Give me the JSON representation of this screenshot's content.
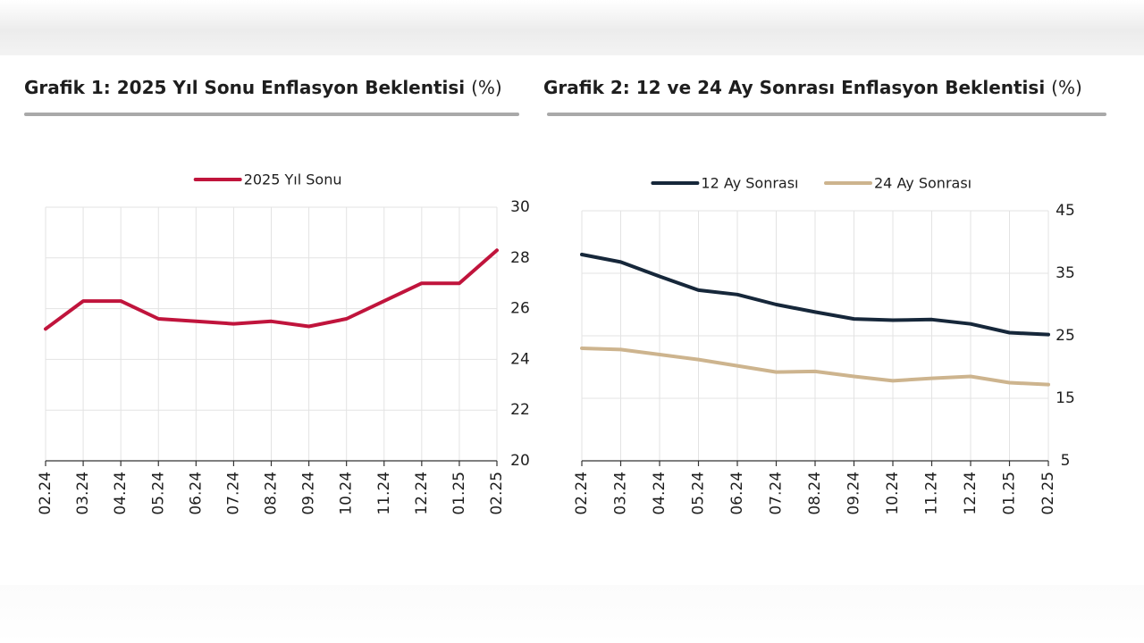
{
  "chart_data": [
    {
      "type": "line",
      "title": "Grafik 1: 2025 Yıl Sonu Enflasyon Beklentisi",
      "unit": "(%)",
      "categories": [
        "02.24",
        "03.24",
        "04.24",
        "05.24",
        "06.24",
        "07.24",
        "08.24",
        "09.24",
        "10.24",
        "11.24",
        "12.24",
        "01.25",
        "02.25"
      ],
      "series": [
        {
          "name": "2025 Yıl Sonu",
          "color": "#c0143c",
          "values": [
            25.2,
            26.3,
            26.3,
            25.6,
            25.5,
            25.4,
            25.5,
            25.3,
            25.6,
            26.3,
            27.0,
            27.0,
            28.3
          ]
        }
      ],
      "ylim": [
        20,
        30
      ],
      "yticks": [
        20,
        22,
        24,
        26,
        28,
        30
      ],
      "grid": true,
      "legend": "top-center",
      "y_axis_side": "right"
    },
    {
      "type": "line",
      "title": "Grafik 2: 12 ve 24 Ay Sonrası Enflasyon Beklentisi",
      "unit": "(%)",
      "categories": [
        "02.24",
        "03.24",
        "04.24",
        "05.24",
        "06.24",
        "07.24",
        "08.24",
        "09.24",
        "10.24",
        "11.24",
        "12.24",
        "01.25",
        "02.25"
      ],
      "series": [
        {
          "name": "12 Ay Sonrası",
          "color": "#16273a",
          "values": [
            38.0,
            36.8,
            34.5,
            32.3,
            31.6,
            30.0,
            28.8,
            27.7,
            27.5,
            27.6,
            26.9,
            25.5,
            25.2
          ]
        },
        {
          "name": "24 Ay Sonrası",
          "color": "#cdb48e",
          "values": [
            23.0,
            22.8,
            22.0,
            21.2,
            20.2,
            19.2,
            19.3,
            18.5,
            17.8,
            18.2,
            18.5,
            17.5,
            17.2
          ]
        }
      ],
      "ylim": [
        5,
        45
      ],
      "yticks": [
        5,
        15,
        25,
        35,
        45
      ],
      "grid": true,
      "legend": "top-center",
      "y_axis_side": "right"
    }
  ]
}
